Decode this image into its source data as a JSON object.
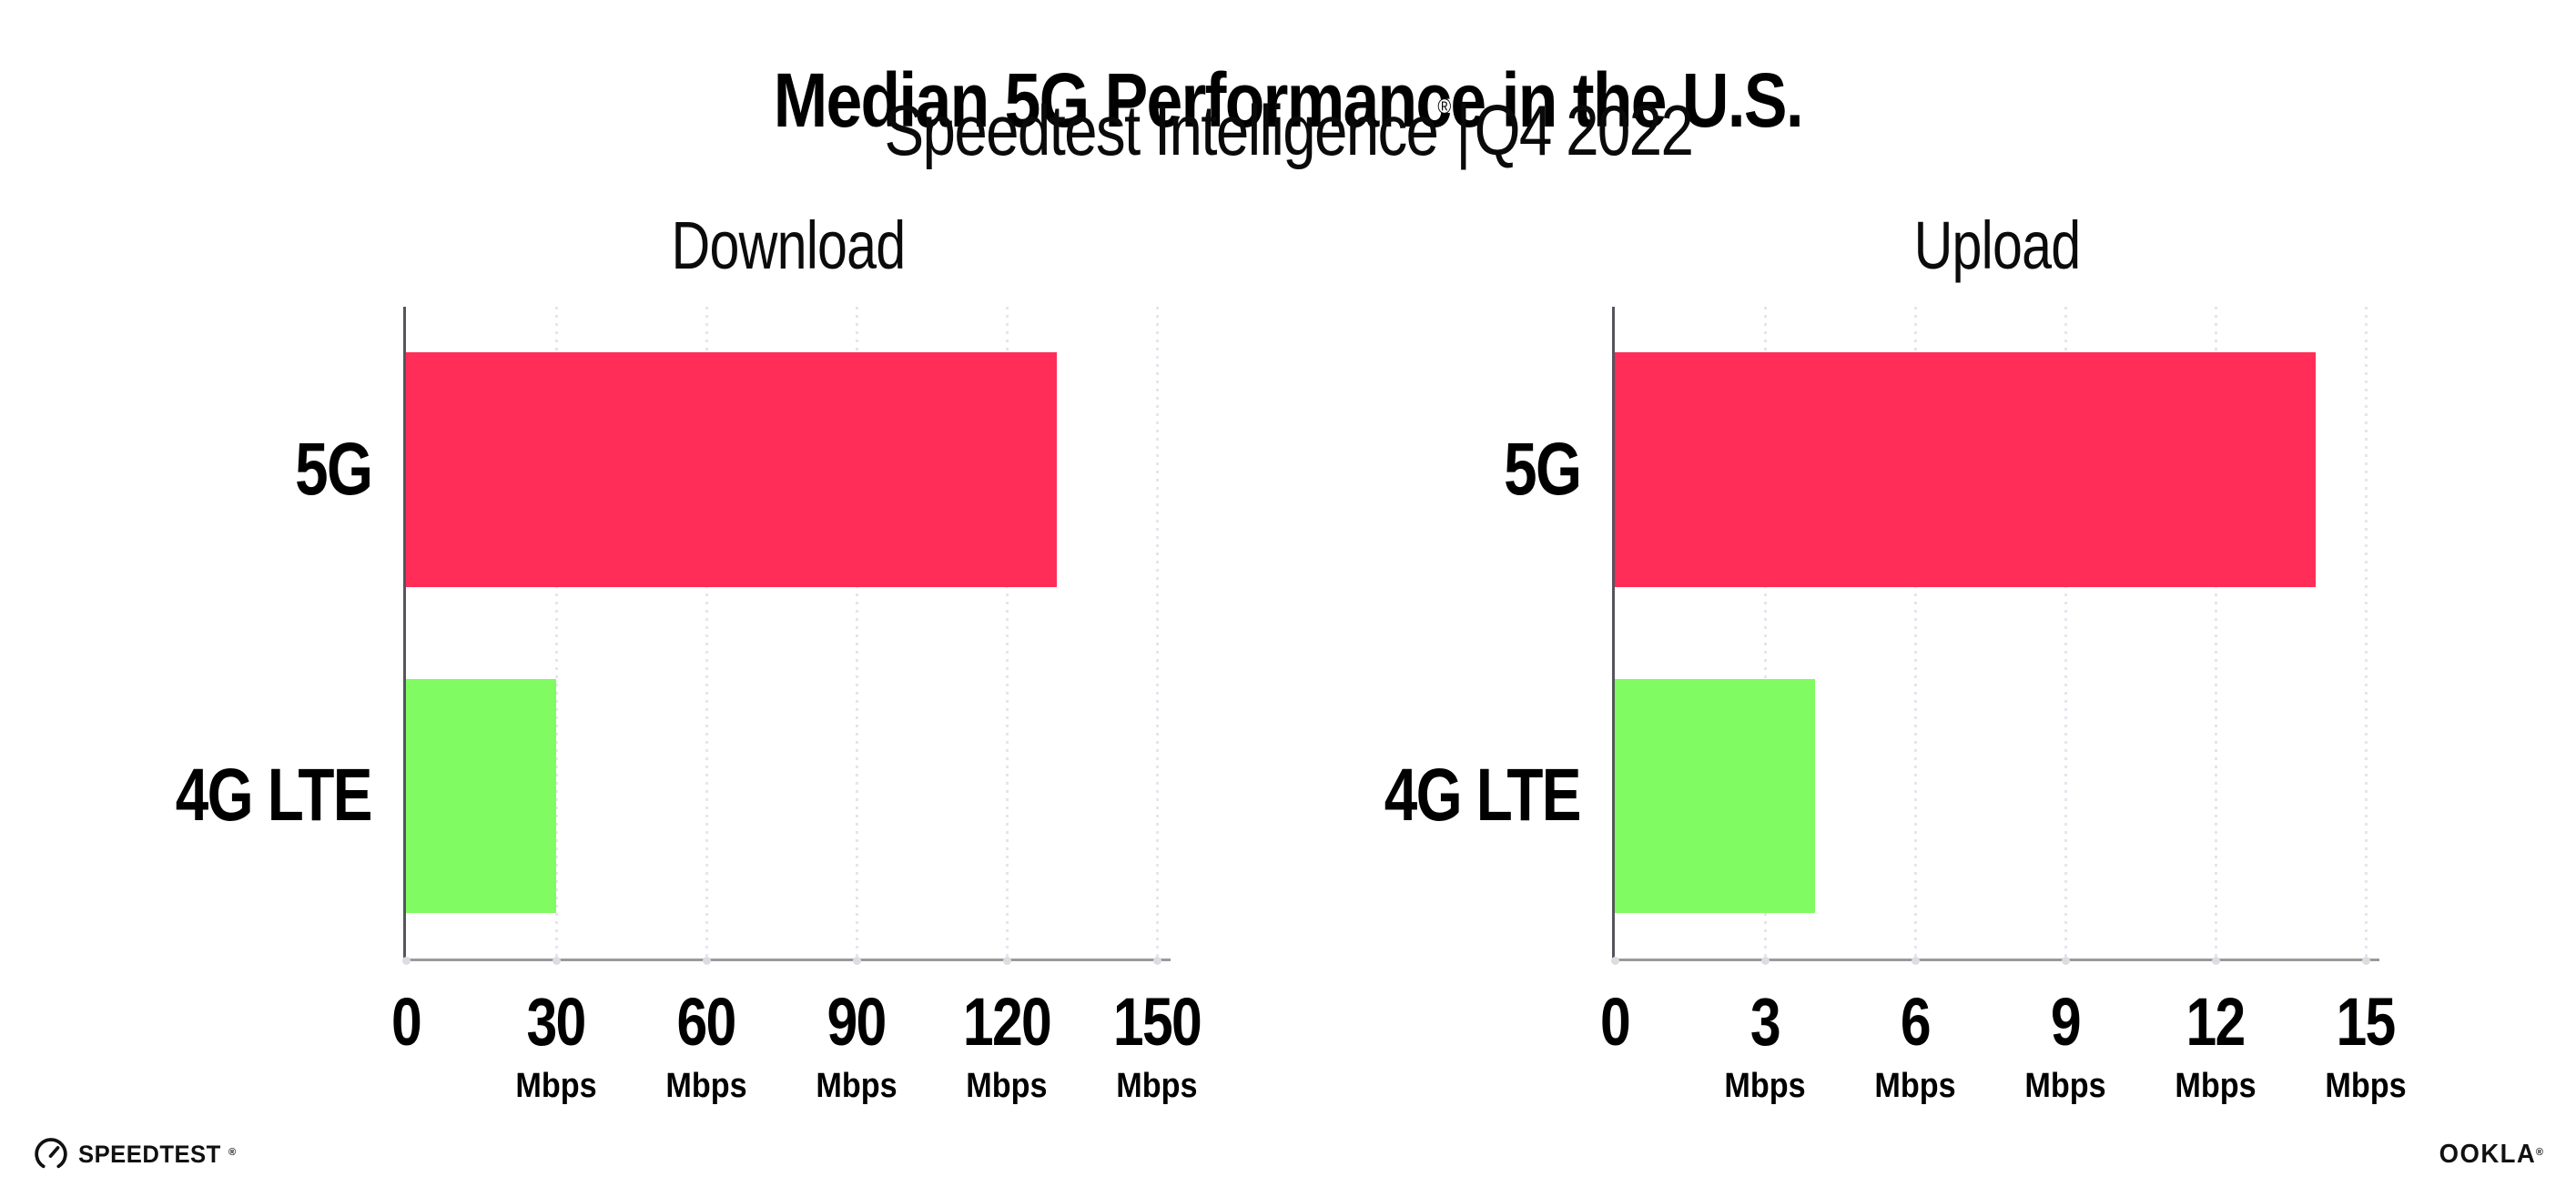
{
  "header": {
    "title": "Median 5G Performance in the U.S.",
    "subtitle_brand": "Speedtest Intelligence",
    "subtitle_reg": "®",
    "subtitle_separator": "|",
    "subtitle_period": "Q4 2022"
  },
  "chart_data": [
    {
      "type": "bar",
      "orientation": "horizontal",
      "title": "Download",
      "categories": [
        "5G",
        "4G LTE"
      ],
      "values": [
        130,
        30
      ],
      "unit": "Mbps",
      "xlim": [
        0,
        150
      ],
      "xticks": [
        0,
        30,
        60,
        90,
        120,
        150
      ],
      "grid": "vertical-dotted",
      "legend": "none",
      "bar_colors": [
        "#FF2D57",
        "#81FB62"
      ]
    },
    {
      "type": "bar",
      "orientation": "horizontal",
      "title": "Upload",
      "categories": [
        "5G",
        "4G LTE"
      ],
      "values": [
        14,
        4
      ],
      "unit": "Mbps",
      "xlim": [
        0,
        15
      ],
      "xticks": [
        0,
        3,
        6,
        9,
        12,
        15
      ],
      "grid": "vertical-dotted",
      "legend": "none",
      "bar_colors": [
        "#FF2D57",
        "#81FB62"
      ]
    }
  ],
  "colors": {
    "bar_5g": "#FF2D57",
    "bar_4g_lte": "#81FB62",
    "axis_left_spine": "#55555c",
    "axis_baseline": "#9a9a9a",
    "gridline": "#e5e5ee",
    "text": "#000000",
    "background": "#ffffff"
  },
  "footer": {
    "speedtest_label": "SPEEDTEST",
    "speedtest_reg": "®",
    "speedtest_icon": "speedtest-gauge-icon",
    "ookla_label": "OOKLA",
    "ookla_reg": "®"
  }
}
